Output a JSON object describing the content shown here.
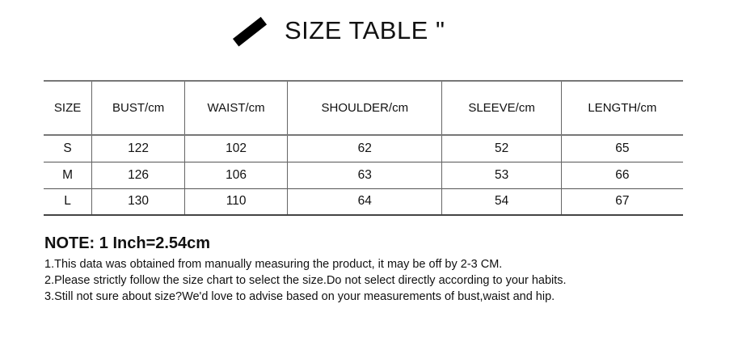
{
  "title": "SIZE TABLE \"",
  "table": {
    "headers": [
      "SIZE",
      "BUST/cm",
      "WAIST/cm",
      "SHOULDER/cm",
      "SLEEVE/cm",
      "LENGTH/cm"
    ],
    "rows": [
      [
        "S",
        "122",
        "102",
        "62",
        "52",
        "65"
      ],
      [
        "M",
        "126",
        "106",
        "63",
        "53",
        "66"
      ],
      [
        "L",
        "130",
        "110",
        "64",
        "54",
        "67"
      ]
    ]
  },
  "note": {
    "heading": "NOTE: 1 Inch=2.54cm",
    "lines": [
      "1.This data was obtained from manually measuring the product, it may be off by 2-3 CM.",
      "2.Please strictly follow the size chart to select the size.Do not select directly according to your habits.",
      "3.Still not sure about size?We'd love to advise based on your measurements of bust,waist and hip."
    ]
  }
}
